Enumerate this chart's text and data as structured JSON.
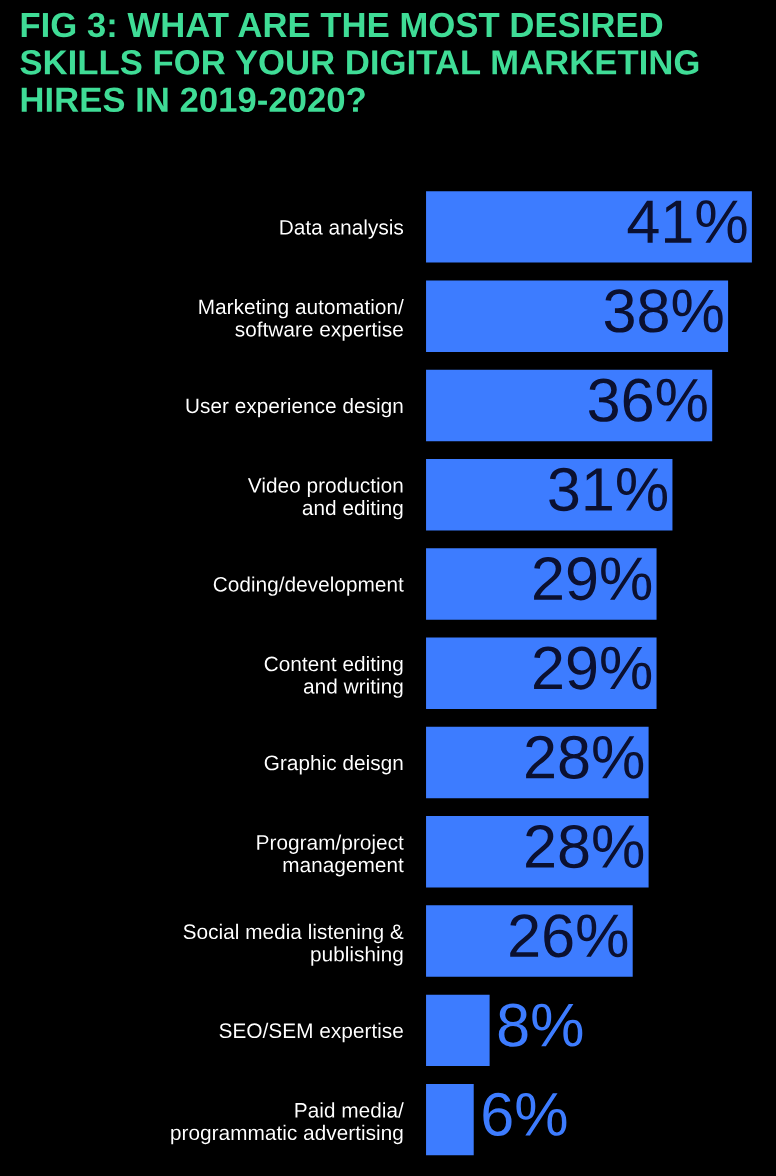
{
  "chart_data": {
    "type": "bar",
    "orientation": "horizontal",
    "title": "FIG 3: WHAT ARE THE MOST DESIRED SKILLS FOR YOUR DIGITAL MARKETING HIRES IN 2019-2020?",
    "categories": [
      "Data analysis",
      "Marketing automation/\nsoftware expertise",
      "User experience design",
      "Video production\nand editing",
      "Coding/development",
      "Content editing\nand writing",
      "Graphic deisgn",
      "Program/project\nmanagement",
      "Social media listening &\npublishing",
      "SEO/SEM expertise",
      "Paid media/\nprogrammatic advertising"
    ],
    "values": [
      41,
      38,
      36,
      31,
      29,
      29,
      28,
      28,
      26,
      8,
      6
    ],
    "value_labels": [
      "41%",
      "38%",
      "36%",
      "31%",
      "29%",
      "29%",
      "28%",
      "28%",
      "26%",
      "8%",
      "6%"
    ],
    "color": "#3d7cff",
    "grid": false,
    "legend": false
  }
}
